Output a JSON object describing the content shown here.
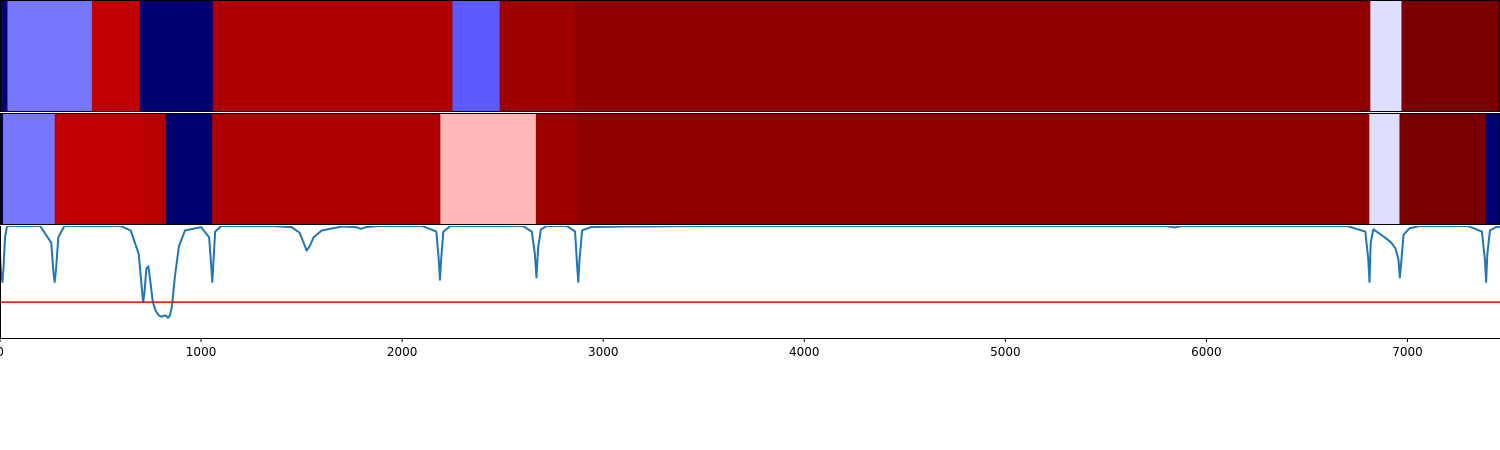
{
  "chart_data": [
    {
      "type": "segmentation_strip",
      "title": "",
      "xlim": [
        0,
        7460
      ],
      "segments": [
        {
          "start": 0,
          "end": 37,
          "color": "#000070"
        },
        {
          "start": 37,
          "end": 457,
          "color": "#7878ff"
        },
        {
          "start": 457,
          "end": 695,
          "color": "#c00000"
        },
        {
          "start": 695,
          "end": 1058,
          "color": "#000070"
        },
        {
          "start": 1058,
          "end": 2250,
          "color": "#ae0000"
        },
        {
          "start": 2250,
          "end": 2485,
          "color": "#5a5aff"
        },
        {
          "start": 2485,
          "end": 2860,
          "color": "#9e0000"
        },
        {
          "start": 2860,
          "end": 6815,
          "color": "#8e0000"
        },
        {
          "start": 6815,
          "end": 6970,
          "color": "#dedeff"
        },
        {
          "start": 6970,
          "end": 7460,
          "color": "#780000"
        }
      ]
    },
    {
      "type": "segmentation_strip",
      "title": "",
      "xlim": [
        0,
        7460
      ],
      "segments": [
        {
          "start": 0,
          "end": 15,
          "color": "#000070"
        },
        {
          "start": 15,
          "end": 272,
          "color": "#7878ff"
        },
        {
          "start": 272,
          "end": 710,
          "color": "#c00000"
        },
        {
          "start": 710,
          "end": 825,
          "color": "#b80000"
        },
        {
          "start": 825,
          "end": 1055,
          "color": "#000070"
        },
        {
          "start": 1055,
          "end": 2190,
          "color": "#ae0000"
        },
        {
          "start": 2190,
          "end": 2665,
          "color": "#ffb8b8"
        },
        {
          "start": 2665,
          "end": 2870,
          "color": "#9e0000"
        },
        {
          "start": 2870,
          "end": 6810,
          "color": "#8e0000"
        },
        {
          "start": 6810,
          "end": 6960,
          "color": "#dedeff"
        },
        {
          "start": 6960,
          "end": 7390,
          "color": "#780000"
        },
        {
          "start": 7390,
          "end": 7460,
          "color": "#000070"
        }
      ]
    },
    {
      "type": "line",
      "title": "",
      "xlabel": "",
      "ylabel": "",
      "xlim": [
        0,
        7460
      ],
      "ylim": [
        -1.0,
        0.0
      ],
      "x_ticks": [
        0,
        1000,
        2000,
        3000,
        4000,
        5000,
        6000,
        7000
      ],
      "x_tick_labels": [
        "0",
        "1000",
        "2000",
        "3000",
        "4000",
        "5000",
        "6000",
        "7000"
      ],
      "series": [
        {
          "color": "#1f77b4",
          "x": [
            0,
            5,
            12,
            18,
            25,
            35,
            200,
            255,
            265,
            272,
            279,
            290,
            320,
            600,
            650,
            690,
            705,
            712,
            718,
            728,
            738,
            748,
            760,
            775,
            790,
            805,
            815,
            825,
            835,
            845,
            855,
            870,
            890,
            920,
            1000,
            1040,
            1050,
            1056,
            1062,
            1070,
            1100,
            1350,
            1450,
            1490,
            1510,
            1525,
            1540,
            1560,
            1600,
            1700,
            1770,
            1795,
            1820,
            1880,
            2100,
            2170,
            2182,
            2188,
            2194,
            2205,
            2240,
            2600,
            2645,
            2660,
            2668,
            2676,
            2690,
            2720,
            2820,
            2860,
            2870,
            2876,
            2882,
            2895,
            2940,
            3100,
            3500,
            5800,
            5840,
            5880,
            6700,
            6790,
            6805,
            6811,
            6817,
            6830,
            6870,
            6900,
            6920,
            6940,
            6955,
            6962,
            6969,
            6980,
            7010,
            7060,
            7300,
            7370,
            7385,
            7391,
            7397,
            7410,
            7440,
            7460
          ],
          "y": [
            -0.25,
            -0.42,
            -0.5,
            -0.36,
            -0.1,
            0,
            0,
            -0.15,
            -0.4,
            -0.5,
            -0.38,
            -0.1,
            0,
            0,
            -0.04,
            -0.25,
            -0.55,
            -0.68,
            -0.6,
            -0.38,
            -0.36,
            -0.5,
            -0.68,
            -0.76,
            -0.8,
            -0.81,
            -0.8,
            -0.8,
            -0.82,
            -0.8,
            -0.72,
            -0.45,
            -0.18,
            -0.04,
            -0.01,
            -0.1,
            -0.35,
            -0.5,
            -0.3,
            -0.05,
            0,
            0,
            -0.01,
            -0.06,
            -0.15,
            -0.22,
            -0.18,
            -0.1,
            -0.04,
            -0.005,
            -0.01,
            -0.025,
            -0.01,
            0,
            0,
            -0.05,
            -0.3,
            -0.48,
            -0.3,
            -0.05,
            0,
            0,
            -0.05,
            -0.25,
            -0.46,
            -0.2,
            -0.03,
            0,
            0,
            -0.05,
            -0.35,
            -0.5,
            -0.3,
            -0.04,
            -0.01,
            -0.005,
            0,
            0,
            -0.012,
            0,
            0,
            -0.05,
            -0.3,
            -0.5,
            -0.15,
            -0.03,
            -0.08,
            -0.12,
            -0.15,
            -0.2,
            -0.3,
            -0.46,
            -0.32,
            -0.08,
            -0.02,
            0,
            0,
            -0.05,
            -0.3,
            -0.5,
            -0.25,
            -0.04,
            -0.01,
            -0.005
          ]
        },
        {
          "color": "#ff0000",
          "type": "hline",
          "y": -0.68
        }
      ]
    }
  ]
}
